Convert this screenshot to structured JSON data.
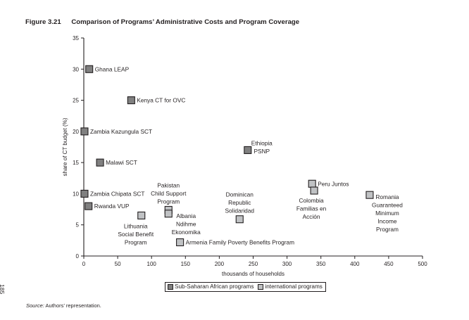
{
  "figure": {
    "number": "Figure 3.21",
    "title": "Comparison of Programs’ Administrative Costs and Program Coverage"
  },
  "source": {
    "label": "Source:",
    "text": "Authors’ representation."
  },
  "page_number": "185",
  "colors": {
    "sub_saharan": "#808080",
    "international": "#c0c2c4",
    "axis": "#231f20"
  },
  "chart_data": {
    "type": "scatter",
    "title": "Comparison of Programs’ Administrative Costs and Program Coverage",
    "xlabel": "thousands of households",
    "ylabel": "share of CT budget (%)",
    "xlim": [
      0,
      500
    ],
    "ylim": [
      0,
      35
    ],
    "xticks": [
      0,
      50,
      100,
      150,
      200,
      250,
      300,
      350,
      400,
      450,
      500
    ],
    "yticks": [
      0,
      5,
      10,
      15,
      20,
      25,
      30,
      35
    ],
    "grid": false,
    "legend_position": "bottom-center",
    "legend": [
      {
        "name": "Sub-Saharan African programs",
        "key": "sub_saharan"
      },
      {
        "name": "international programs",
        "key": "international"
      }
    ],
    "series": [
      {
        "name": "Sub-Saharan African programs",
        "key": "sub_saharan",
        "points": [
          {
            "label": [
              "Ghana LEAP"
            ],
            "x": 8,
            "y": 30,
            "pos": "right"
          },
          {
            "label": [
              "Kenya CT for OVC"
            ],
            "x": 70,
            "y": 25,
            "pos": "right"
          },
          {
            "label": [
              "Zambia Kazungula SCT"
            ],
            "x": 1,
            "y": 20,
            "pos": "right"
          },
          {
            "label": [
              "Malawi SCT"
            ],
            "x": 24,
            "y": 15,
            "pos": "right"
          },
          {
            "label": [
              "Zambia Chipata SCT"
            ],
            "x": 1,
            "y": 10,
            "pos": "right"
          },
          {
            "label": [
              "Rwanda VUP"
            ],
            "x": 7,
            "y": 8,
            "pos": "right"
          },
          {
            "label": [
              "Ethiopia",
              "PSNP"
            ],
            "x": 242,
            "y": 17,
            "pos": "right-above"
          }
        ]
      },
      {
        "name": "international programs",
        "key": "international",
        "points": [
          {
            "label": [
              "Lithuania",
              "Social Benefit",
              "Program"
            ],
            "x": 85,
            "y": 6.5,
            "pos": "below-left"
          },
          {
            "label": [
              "Pakistan",
              "Child Support",
              "Program"
            ],
            "x": 125,
            "y": 7.4,
            "pos": "above"
          },
          {
            "label": [
              "Albania",
              "Ndihme",
              "Ekonomika"
            ],
            "x": 125,
            "y": 6.8,
            "pos": "right-below"
          },
          {
            "label": [
              "Armenia Family Poverty Benefits Program"
            ],
            "x": 142,
            "y": 2.2,
            "pos": "right"
          },
          {
            "label": [
              "Dominican",
              "Republic",
              "Solidaridad"
            ],
            "x": 230,
            "y": 5.9,
            "pos": "above"
          },
          {
            "label": [
              "Peru Juntos"
            ],
            "x": 337,
            "y": 11.6,
            "pos": "right"
          },
          {
            "label": [
              "Colombia",
              "Familias en",
              "Acción"
            ],
            "x": 340,
            "y": 10.5,
            "pos": "below"
          },
          {
            "label": [
              "Romania",
              "Guaranteed",
              "Minimum",
              "Income",
              "Program"
            ],
            "x": 422,
            "y": 9.8,
            "pos": "right-below"
          }
        ]
      }
    ]
  }
}
